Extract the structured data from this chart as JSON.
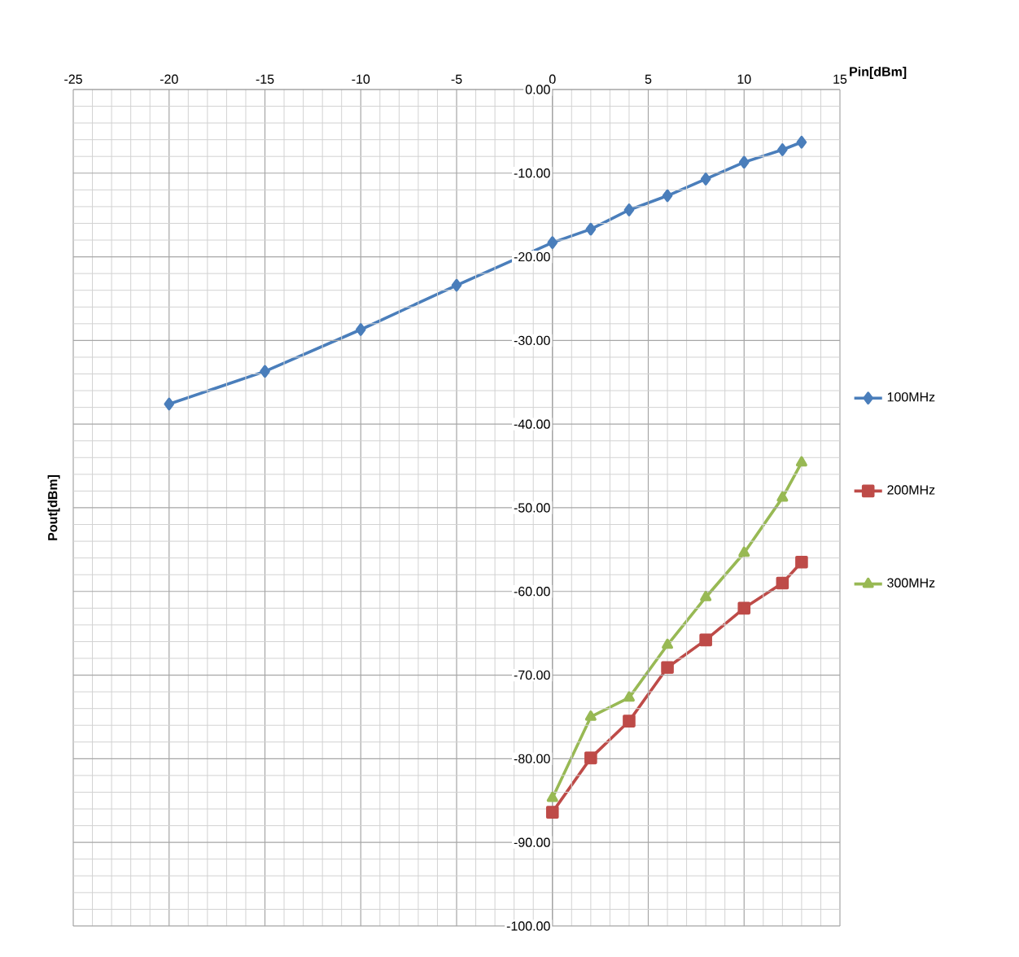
{
  "chart_data": {
    "type": "line",
    "xlabel": "Pin[dBm]",
    "ylabel": "Pout[dBm]",
    "xlim": [
      -25,
      15
    ],
    "xticks": [
      -25,
      -20,
      -15,
      -10,
      -5,
      0,
      5,
      10,
      15
    ],
    "ylim": [
      -100,
      0
    ],
    "yticks": [
      {
        "value": 0,
        "label": "0.00"
      },
      {
        "value": -10,
        "label": "-10.00"
      },
      {
        "value": -20,
        "label": "-20.00"
      },
      {
        "value": -30,
        "label": "-30.00"
      },
      {
        "value": -40,
        "label": "-40.00"
      },
      {
        "value": -50,
        "label": "-50.00"
      },
      {
        "value": -60,
        "label": "-60.00"
      },
      {
        "value": -70,
        "label": "-70.00"
      },
      {
        "value": -80,
        "label": "-80.00"
      },
      {
        "value": -90,
        "label": "-90.00"
      },
      {
        "value": -100,
        "label": "-100.00"
      }
    ],
    "grid": true,
    "legend": "right",
    "line_style": "solid",
    "series": [
      {
        "name": "100MHz",
        "color": "#4a7ebb",
        "marker": "diamond",
        "x": [
          -20,
          -15,
          -10,
          -5,
          0,
          2,
          4,
          6,
          8,
          10,
          12,
          13
        ],
        "values": [
          -37.6,
          -33.7,
          -28.7,
          -23.4,
          -18.3,
          -16.7,
          -14.4,
          -12.7,
          -10.7,
          -8.7,
          -7.2,
          -6.3
        ]
      },
      {
        "name": "200MHz",
        "color": "#be4b48",
        "marker": "square",
        "x": [
          0,
          2,
          4,
          6,
          8,
          10,
          12,
          13
        ],
        "values": [
          -86.4,
          -79.9,
          -75.5,
          -69.1,
          -65.8,
          -62.0,
          -59.0,
          -56.5
        ]
      },
      {
        "name": "300MHz",
        "color": "#98b954",
        "marker": "triangle",
        "x": [
          0,
          2,
          4,
          6,
          8,
          10,
          12,
          13
        ],
        "values": [
          -84.7,
          -75.0,
          -72.7,
          -66.4,
          -60.7,
          -55.4,
          -48.8,
          -44.6
        ]
      }
    ]
  }
}
